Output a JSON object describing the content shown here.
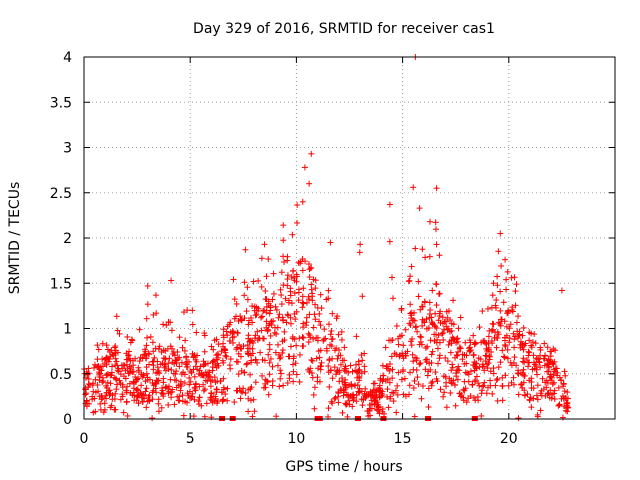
{
  "chart_data": {
    "type": "scatter",
    "title": "Day 329 of 2016, SRMTID for receiver cas1",
    "xlabel": "GPS time / hours",
    "ylabel": "SRMTID / TECUs",
    "xlim": [
      0,
      25
    ],
    "ylim": [
      0,
      4
    ],
    "xticks": [
      0,
      5,
      10,
      15,
      20
    ],
    "xtick_labels": [
      "0",
      "5",
      "10",
      "15",
      "20"
    ],
    "yticks": [
      0,
      0.5,
      1,
      1.5,
      2,
      2.5,
      3,
      3.5,
      4
    ],
    "ytick_labels": [
      "0",
      "0.5",
      "1",
      "1.5",
      "2",
      "2.5",
      "3",
      "3.5",
      "4"
    ],
    "grid": true,
    "marker": "plus",
    "series_color": "#ff0000",
    "activity_envelope": [
      {
        "x": 0.0,
        "level": 0.35,
        "max": 0.75
      },
      {
        "x": 1.0,
        "level": 0.45,
        "max": 0.95
      },
      {
        "x": 1.5,
        "level": 0.55,
        "max": 1.15
      },
      {
        "x": 2.5,
        "level": 0.4,
        "max": 0.85
      },
      {
        "x": 3.0,
        "level": 0.55,
        "max": 1.47
      },
      {
        "x": 4.0,
        "level": 0.55,
        "max": 1.4
      },
      {
        "x": 5.0,
        "level": 0.5,
        "max": 1.2
      },
      {
        "x": 6.0,
        "level": 0.4,
        "max": 0.95
      },
      {
        "x": 6.5,
        "level": 0.55,
        "max": 1.1
      },
      {
        "x": 7.0,
        "level": 0.75,
        "max": 1.6
      },
      {
        "x": 8.0,
        "level": 0.8,
        "max": 1.7
      },
      {
        "x": 8.5,
        "level": 0.85,
        "max": 1.9
      },
      {
        "x": 9.0,
        "level": 0.95,
        "max": 2.0
      },
      {
        "x": 10.0,
        "level": 1.1,
        "max": 2.4
      },
      {
        "x": 10.5,
        "level": 1.2,
        "max": 2.8
      },
      {
        "x": 11.0,
        "level": 0.9,
        "max": 2.0
      },
      {
        "x": 11.5,
        "level": 0.7,
        "max": 1.5
      },
      {
        "x": 12.0,
        "level": 0.5,
        "max": 1.1
      },
      {
        "x": 12.5,
        "level": 0.3,
        "max": 0.6
      },
      {
        "x": 13.0,
        "level": 0.45,
        "max": 1.95
      },
      {
        "x": 13.3,
        "level": 0.2,
        "max": 0.4
      },
      {
        "x": 14.0,
        "level": 0.25,
        "max": 0.6
      },
      {
        "x": 14.5,
        "level": 0.6,
        "max": 1.6
      },
      {
        "x": 15.0,
        "level": 0.6,
        "max": 1.2
      },
      {
        "x": 15.5,
        "level": 0.85,
        "max": 2.3
      },
      {
        "x": 16.0,
        "level": 0.9,
        "max": 2.2
      },
      {
        "x": 16.5,
        "level": 0.9,
        "max": 2.3
      },
      {
        "x": 17.0,
        "level": 0.8,
        "max": 1.6
      },
      {
        "x": 18.0,
        "level": 0.5,
        "max": 1.0
      },
      {
        "x": 19.0,
        "level": 0.6,
        "max": 1.3
      },
      {
        "x": 19.5,
        "level": 0.95,
        "max": 2.0
      },
      {
        "x": 20.0,
        "level": 0.9,
        "max": 1.9
      },
      {
        "x": 21.0,
        "level": 0.55,
        "max": 0.95
      },
      {
        "x": 22.0,
        "level": 0.45,
        "max": 0.9
      },
      {
        "x": 22.8,
        "level": 0.2,
        "max": 0.45
      }
    ],
    "data_range_hours": [
      0.0,
      22.8
    ],
    "highlight_points": [
      {
        "x": 15.6,
        "y": 4.0
      },
      {
        "x": 10.7,
        "y": 2.93
      },
      {
        "x": 10.4,
        "y": 2.78
      },
      {
        "x": 10.6,
        "y": 2.6
      },
      {
        "x": 10.3,
        "y": 2.4
      },
      {
        "x": 15.5,
        "y": 2.56
      },
      {
        "x": 16.6,
        "y": 2.55
      },
      {
        "x": 14.4,
        "y": 2.37
      },
      {
        "x": 15.8,
        "y": 2.33
      },
      {
        "x": 13.0,
        "y": 1.93
      },
      {
        "x": 22.5,
        "y": 1.42
      },
      {
        "x": 11.6,
        "y": 1.95
      },
      {
        "x": 8.5,
        "y": 1.93
      },
      {
        "x": 7.6,
        "y": 1.87
      },
      {
        "x": 19.6,
        "y": 2.05
      },
      {
        "x": 14.4,
        "y": 1.96
      },
      {
        "x": 3.0,
        "y": 1.47
      },
      {
        "x": 4.1,
        "y": 1.53
      },
      {
        "x": 5.1,
        "y": 1.2
      }
    ],
    "zero_markers": [
      6.5,
      7.0,
      11.0,
      11.1,
      12.9,
      14.1,
      16.2,
      18.4
    ]
  }
}
